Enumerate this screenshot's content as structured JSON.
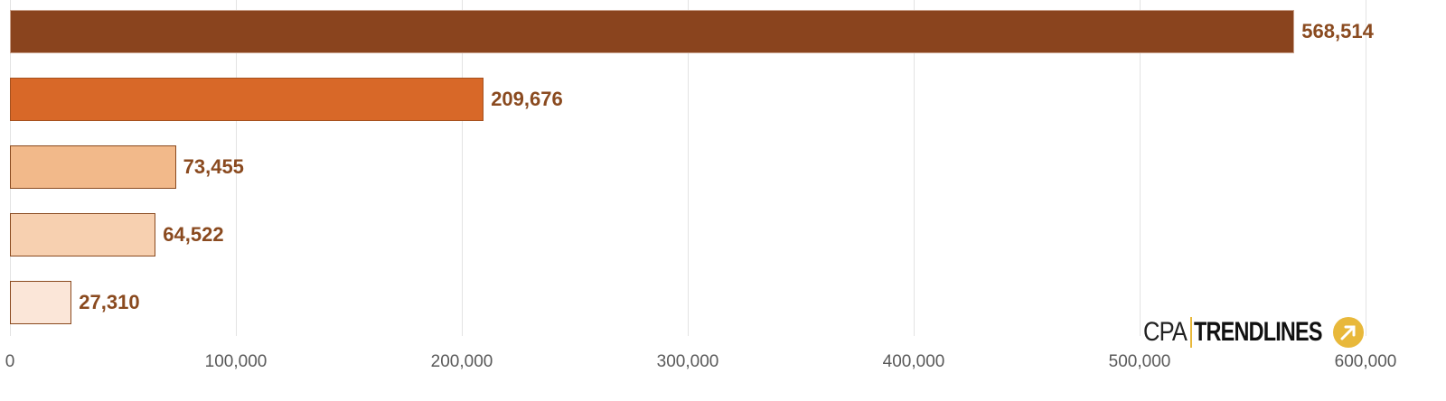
{
  "chart_data": {
    "type": "bar",
    "orientation": "horizontal",
    "title": "",
    "xlabel": "",
    "ylabel": "",
    "categories": [
      "",
      "",
      "",
      "",
      ""
    ],
    "values": [
      568514,
      209676,
      73455,
      64522,
      27310
    ],
    "value_labels": [
      "568,514",
      "209,676",
      "73,455",
      "64,522",
      "27,310"
    ],
    "bar_colors": [
      "#8a441e",
      "#d86828",
      "#f2b98a",
      "#f7d0b0",
      "#fbe6d8"
    ],
    "label_color": "#8a4a1f",
    "xlim": [
      0,
      600000
    ],
    "x_ticks": [
      "0",
      "100,000",
      "200,000",
      "300,000",
      "400,000",
      "500,000",
      "600,000"
    ],
    "grid": true,
    "legend": null
  },
  "branding": {
    "logo_left": "CPA",
    "logo_right": "TRENDLINES",
    "logo_accent": "#e8b83a"
  }
}
